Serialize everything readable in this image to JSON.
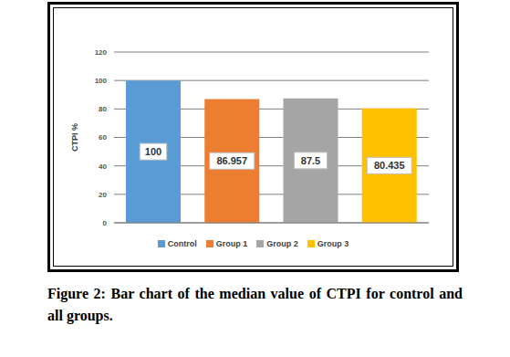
{
  "chart_data": {
    "type": "bar",
    "caption": "Figure 2: Bar chart of the median value of CTPI for control and all groups.",
    "y_label": "CTPI %",
    "categories": [
      "Control",
      "Group 1",
      "Group 2",
      "Group 3"
    ],
    "values": [
      100,
      86.957,
      87.5,
      80.435
    ],
    "colors": [
      "#5b9bd5",
      "#ed7d31",
      "#a5a5a5",
      "#ffc000"
    ],
    "ylim": [
      0,
      120
    ],
    "yticks": [
      0,
      20,
      40,
      60,
      80,
      100,
      120
    ],
    "grid": true,
    "legend": "bottom",
    "data_labels": true,
    "tick_labels": "y"
  }
}
